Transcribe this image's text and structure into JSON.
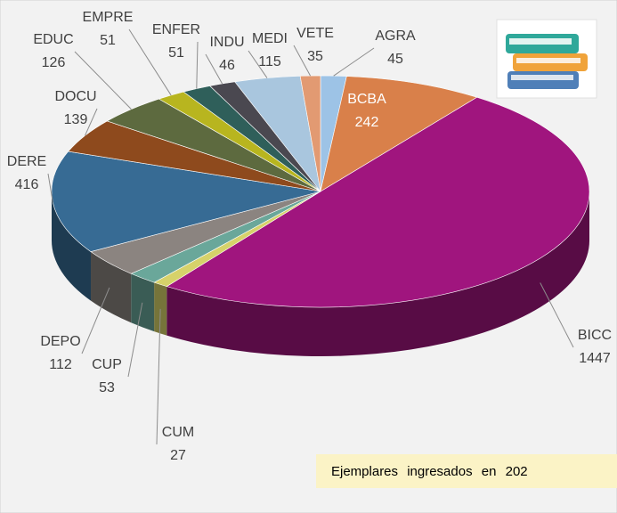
{
  "chart_data": {
    "type": "pie",
    "categories": [
      "AGRA",
      "BCBA",
      "BICC",
      "CUM",
      "CUP",
      "DEPO",
      "DERE",
      "DOCU",
      "EDUC",
      "EMPRE",
      "ENFER",
      "INDU",
      "MEDI",
      "VETE"
    ],
    "values": [
      45,
      242,
      1447,
      27,
      53,
      112,
      416,
      139,
      126,
      51,
      51,
      46,
      115,
      35
    ],
    "colors": [
      "#9dc3e6",
      "#d9804a",
      "#a0157e",
      "#d6d26a",
      "#6aa79a",
      "#8b8480",
      "#376b94",
      "#8e4a1d",
      "#5d6a3f",
      "#b8b51f",
      "#2f5f5a",
      "#4a4850",
      "#a9c6de",
      "#e29a72"
    ],
    "annotation": "Ejemplares ingresados en 202"
  }
}
